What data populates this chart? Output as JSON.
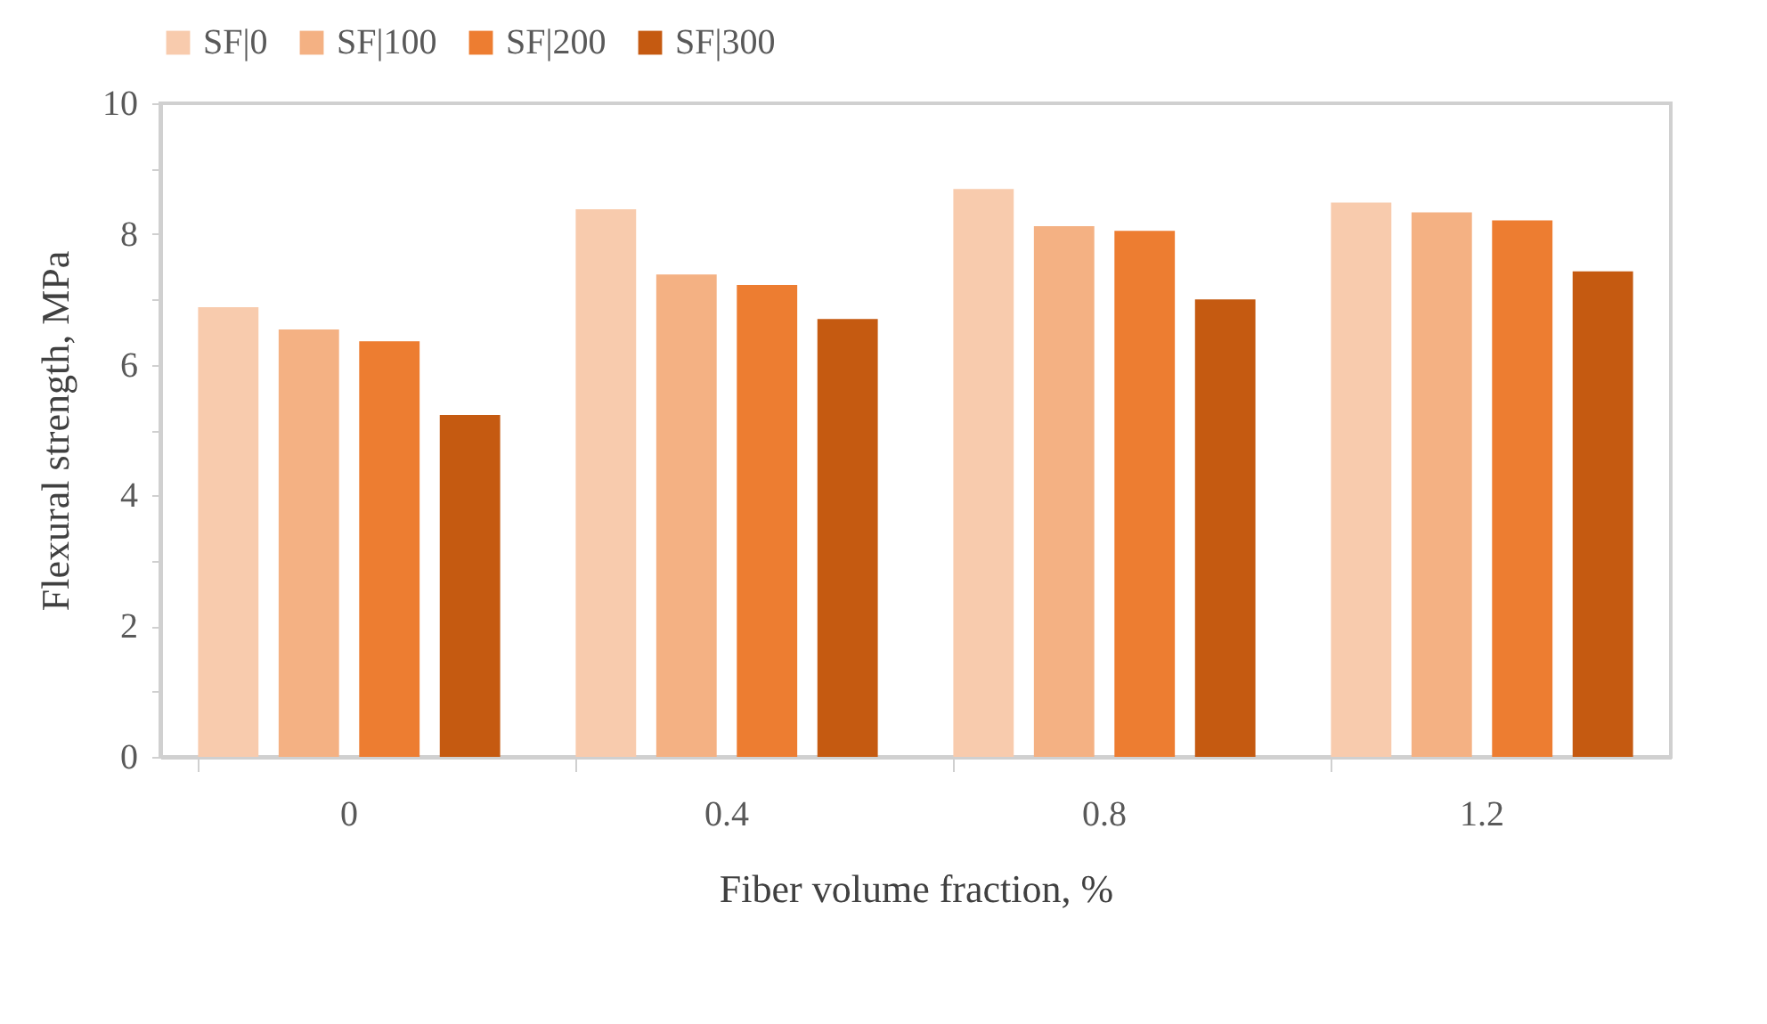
{
  "chart_data": {
    "type": "bar",
    "xlabel": "Fiber volume fraction, %",
    "ylabel": "Flexural strength, MPa",
    "categories": [
      "0",
      "0.4",
      "0.8",
      "1.2"
    ],
    "series": [
      {
        "name": "SF|0",
        "color": "#f8cbad",
        "values": [
          6.88,
          8.38,
          8.69,
          8.48
        ]
      },
      {
        "name": "SF|100",
        "color": "#f4b183",
        "values": [
          6.54,
          7.38,
          8.12,
          8.33
        ]
      },
      {
        "name": "SF|200",
        "color": "#ed7d31",
        "values": [
          6.36,
          7.22,
          8.05,
          8.21
        ]
      },
      {
        "name": "SF|300",
        "color": "#c55a11",
        "values": [
          5.23,
          6.7,
          7.0,
          7.43
        ]
      }
    ],
    "ylim": [
      0,
      10
    ],
    "yticks": [
      0,
      {
        "value": 1,
        "label": null
      },
      2,
      {
        "value": 3,
        "label": null
      },
      4,
      {
        "value": 5,
        "label": null
      },
      6,
      {
        "value": 7,
        "label": null
      },
      8,
      {
        "value": 9,
        "label": null
      },
      10
    ],
    "grid": false,
    "legend": "top"
  }
}
